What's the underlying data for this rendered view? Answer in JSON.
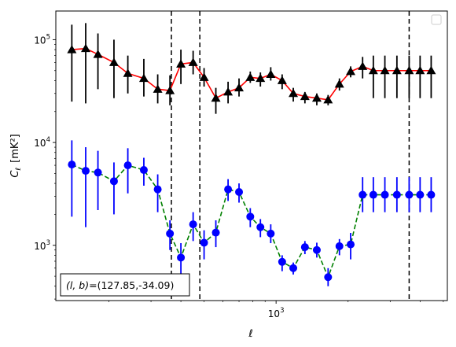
{
  "chart_data": {
    "type": "line",
    "title": "",
    "xlabel": "ℓ",
    "ylabel": "C",
    "ylabel_sub": "ℓ",
    "ylabel_unit": "[mK²]",
    "xscale": "log",
    "yscale": "log",
    "xlim": [
      120,
      5200
    ],
    "ylim": [
      290,
      190000
    ],
    "grid": false,
    "legend_position": "top-right",
    "x_major_ticks": [
      {
        "value": 1000,
        "label_base": "10",
        "label_exp": "3"
      }
    ],
    "y_major_ticks": [
      {
        "value": 1000,
        "label_base": "10",
        "label_exp": "3"
      },
      {
        "value": 10000,
        "label_base": "10",
        "label_exp": "4"
      },
      {
        "value": 100000,
        "label_base": "10",
        "label_exp": "5"
      }
    ],
    "vertical_lines": [
      365,
      480,
      3600
    ],
    "annotation": {
      "text_a": "(l, b)",
      "text_b": "=(127.85,-34.09)"
    },
    "series": [
      {
        "marker": "triangle",
        "marker_color": "#000000",
        "line_color": "#ff0000",
        "line_style": "solid",
        "errorbar_color": "#000000",
        "x": [
          140,
          160,
          180,
          210,
          240,
          280,
          320,
          360,
          400,
          450,
          500,
          560,
          630,
          700,
          780,
          860,
          950,
          1060,
          1180,
          1320,
          1480,
          1650,
          1840,
          2050,
          2300,
          2550,
          2850,
          3200,
          3600,
          4000,
          4450
        ],
        "y": [
          80000,
          82000,
          72000,
          60000,
          47000,
          42000,
          33000,
          32000,
          58000,
          60000,
          43000,
          27000,
          31000,
          34000,
          43000,
          42000,
          46000,
          40000,
          30000,
          28000,
          27000,
          26000,
          37000,
          49000,
          55000,
          50000,
          50000,
          50000,
          50000,
          50000,
          50000
        ],
        "y_low": [
          25000,
          24000,
          33000,
          27000,
          30000,
          28000,
          24000,
          23000,
          37000,
          46000,
          35000,
          19000,
          24000,
          28000,
          38000,
          35000,
          40000,
          33000,
          25000,
          24000,
          23000,
          23000,
          32000,
          43000,
          42000,
          27000,
          27000,
          27000,
          27000,
          27000,
          27000
        ],
        "y_high": [
          140000,
          145000,
          115000,
          100000,
          70000,
          65000,
          46000,
          45000,
          80000,
          78000,
          53000,
          34000,
          39000,
          42000,
          49000,
          48000,
          54000,
          46000,
          34000,
          31000,
          30000,
          29000,
          42000,
          55000,
          68000,
          70000,
          70000,
          70000,
          70000,
          70000,
          70000
        ]
      },
      {
        "marker": "circle",
        "marker_color": "#0000ff",
        "line_color": "#008000",
        "line_style": "dashed",
        "errorbar_color": "#0000ff",
        "x": [
          140,
          160,
          180,
          210,
          240,
          280,
          320,
          360,
          400,
          450,
          500,
          560,
          630,
          700,
          780,
          860,
          950,
          1060,
          1180,
          1320,
          1480,
          1650,
          1840,
          2050,
          2300,
          2550,
          2850,
          3200,
          3600,
          4000,
          4450
        ],
        "y": [
          6100,
          5300,
          5100,
          4200,
          6000,
          5400,
          3500,
          1300,
          760,
          1600,
          1060,
          1330,
          3500,
          3300,
          1900,
          1500,
          1300,
          690,
          600,
          960,
          900,
          490,
          980,
          1020,
          3100,
          3100,
          3100,
          3100,
          3100,
          3100,
          3100
        ],
        "y_low": [
          1900,
          1500,
          2200,
          2000,
          3200,
          3800,
          2100,
          900,
          490,
          1100,
          730,
          960,
          2700,
          2600,
          1500,
          1200,
          1050,
          560,
          520,
          820,
          760,
          400,
          800,
          730,
          2100,
          2100,
          2100,
          2100,
          2100,
          2100,
          2100
        ],
        "y_high": [
          10500,
          9000,
          8300,
          6400,
          8800,
          7100,
          4900,
          1750,
          1050,
          2100,
          1400,
          1750,
          4400,
          4000,
          2300,
          1800,
          1600,
          800,
          680,
          1100,
          1060,
          600,
          1150,
          1320,
          4600,
          4600,
          4600,
          4600,
          4600,
          4600,
          4600
        ]
      }
    ]
  }
}
